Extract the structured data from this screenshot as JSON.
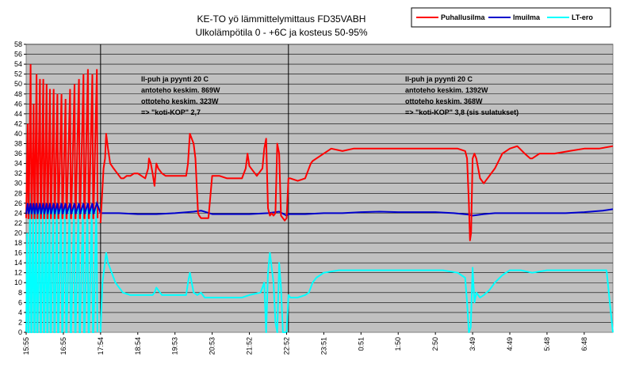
{
  "chart_data": {
    "type": "line",
    "title": "KE-TO yö lämmittelymittaus FD35VABH",
    "subtitle": "Ulkolämpötila 0 - +6C ja kosteus 50-95%",
    "ylim": [
      0,
      58
    ],
    "y_ticks": [
      0,
      2,
      4,
      6,
      8,
      10,
      12,
      14,
      16,
      18,
      20,
      22,
      24,
      26,
      28,
      30,
      32,
      34,
      36,
      38,
      40,
      42,
      44,
      46,
      48,
      50,
      52,
      54,
      56,
      58
    ],
    "x_ticks": [
      "15:55",
      "16:55",
      "17:54",
      "18:54",
      "19:53",
      "20:53",
      "21:52",
      "22:52",
      "23:51",
      "0:51",
      "1:50",
      "2:50",
      "3:49",
      "4:49",
      "5:48",
      "6:48"
    ],
    "x_range": [
      0,
      15.77
    ],
    "grid": true,
    "background": "#c0c0c0",
    "legend_position": "top-right",
    "dividers": [
      2.0,
      7.05
    ],
    "annotations": [
      {
        "lines": [
          "Il-puh ja pyynti 20 C",
          "antoteho keskim. 869W",
          "ottoteho keskim. 323W",
          "=> \"koti-KOP\" 2,7"
        ]
      },
      {
        "lines": [
          "Il-puh ja pyynti 20 C",
          "antoteho keskim. 1392W",
          "ottoteho keskim. 368W",
          "=> \"koti-KOP\" 3,8 (sis sulatukset)"
        ]
      }
    ],
    "series": [
      {
        "name": "Puhallusilma",
        "color": "#ff0000",
        "x": [
          2.0,
          2.08,
          2.12,
          2.15,
          2.2,
          2.26,
          2.35,
          2.45,
          2.55,
          2.62,
          2.7,
          2.8,
          2.9,
          3.0,
          3.1,
          3.2,
          3.28,
          3.3,
          3.35,
          3.4,
          3.45,
          3.5,
          3.55,
          3.65,
          3.75,
          3.85,
          4.0,
          4.2,
          4.3,
          4.35,
          4.4,
          4.5,
          4.55,
          4.62,
          4.65,
          4.7,
          4.8,
          4.9,
          5.0,
          5.2,
          5.4,
          5.6,
          5.8,
          5.9,
          5.95,
          6.0,
          6.2,
          6.35,
          6.4,
          6.45,
          6.5,
          6.55,
          6.6,
          6.65,
          6.7,
          6.75,
          6.8,
          6.85,
          6.9,
          6.95,
          7.0,
          7.05,
          7.1,
          7.3,
          7.5,
          7.6,
          7.65,
          7.7,
          7.8,
          8.0,
          8.2,
          8.5,
          8.8,
          9.0,
          9.3,
          9.6,
          10.0,
          10.4,
          10.8,
          11.2,
          11.6,
          11.8,
          11.85,
          11.9,
          11.93,
          11.96,
          12.0,
          12.05,
          12.1,
          12.2,
          12.3,
          12.45,
          12.6,
          12.8,
          13.0,
          13.2,
          13.4,
          13.55,
          13.6,
          13.8,
          14.2,
          14.6,
          15.0,
          15.4,
          15.77
        ],
        "values": [
          22,
          33,
          35,
          40,
          37,
          34,
          33,
          32,
          31,
          31,
          31.5,
          31.5,
          32,
          32,
          31.5,
          31,
          33,
          35,
          34,
          32,
          29.5,
          34,
          33,
          32,
          31.5,
          31.5,
          31.5,
          31.5,
          31.5,
          34,
          40,
          38,
          35,
          24,
          23.5,
          23,
          23,
          23,
          31.5,
          31.5,
          31,
          31,
          31,
          33,
          36,
          33.5,
          31.5,
          33,
          37,
          39,
          25,
          23.5,
          24,
          23.5,
          24,
          38,
          36,
          23.5,
          23,
          22.5,
          23,
          31,
          31,
          30.5,
          31,
          33,
          34,
          34.5,
          35,
          36,
          37,
          36.5,
          37,
          37,
          37,
          37,
          37,
          37,
          37,
          37,
          37,
          36.5,
          35,
          26,
          18.5,
          20,
          35,
          36,
          35,
          31,
          30,
          31.5,
          33,
          36,
          37,
          37.5,
          36,
          35,
          35,
          36,
          36,
          36.5,
          37,
          37,
          37.5
        ]
      },
      {
        "name": "Imuilma",
        "color": "#0000cc",
        "x": [
          2.0,
          2.5,
          3.0,
          3.5,
          4.0,
          4.5,
          4.7,
          5.0,
          5.5,
          6.0,
          6.5,
          6.8,
          7.0,
          7.05,
          7.5,
          8.0,
          8.5,
          9.0,
          9.5,
          10.0,
          10.5,
          11.0,
          11.5,
          11.9,
          12.0,
          12.3,
          12.6,
          13.0,
          13.5,
          14.0,
          14.5,
          15.0,
          15.5,
          15.77
        ],
        "values": [
          24,
          24,
          23.8,
          23.8,
          24,
          24.3,
          24.5,
          23.8,
          23.8,
          23.8,
          24,
          24.3,
          23.5,
          23.8,
          23.8,
          24,
          24,
          24.2,
          24.3,
          24.2,
          24.2,
          24.2,
          24,
          23.7,
          23.5,
          23.8,
          24,
          24,
          24,
          24,
          24,
          24.2,
          24.5,
          24.8
        ]
      },
      {
        "name": "LT-ero",
        "color": "#00ffff",
        "x": [
          2.0,
          2.05,
          2.15,
          2.2,
          2.3,
          2.4,
          2.6,
          2.8,
          3.0,
          3.2,
          3.4,
          3.45,
          3.5,
          3.55,
          3.6,
          3.65,
          3.75,
          3.9,
          4.1,
          4.3,
          4.35,
          4.4,
          4.45,
          4.5,
          4.6,
          4.7,
          4.8,
          5.0,
          5.4,
          5.8,
          6.0,
          6.3,
          6.4,
          6.45,
          6.5,
          6.55,
          6.65,
          6.7,
          6.75,
          6.8,
          6.85,
          6.9,
          7.0,
          7.05,
          7.1,
          7.3,
          7.5,
          7.6,
          7.7,
          7.8,
          8.0,
          8.4,
          8.8,
          9.2,
          9.6,
          10.0,
          10.4,
          10.8,
          11.2,
          11.6,
          11.8,
          11.85,
          11.9,
          11.95,
          12.0,
          12.05,
          12.1,
          12.2,
          12.3,
          12.45,
          12.6,
          12.8,
          13.0,
          13.3,
          13.6,
          14.0,
          14.4,
          14.8,
          15.2,
          15.6,
          15.77
        ],
        "values": [
          0,
          10,
          16,
          14,
          12,
          10,
          8,
          7.5,
          7.5,
          7.5,
          7.5,
          8,
          9,
          8.5,
          8,
          7.5,
          7.5,
          7.5,
          7.5,
          7.5,
          10,
          12,
          10,
          8,
          7.5,
          8,
          7,
          7,
          7,
          7,
          7.5,
          8,
          10,
          0,
          12,
          16,
          10,
          2,
          0,
          14,
          9,
          0,
          0,
          7.5,
          7,
          7,
          7.5,
          8,
          10,
          11,
          12,
          12.5,
          12.5,
          12.5,
          12.5,
          12.5,
          12.5,
          12.5,
          12.5,
          12,
          11,
          6,
          0,
          1,
          13,
          6,
          8,
          7,
          7.5,
          8.5,
          10,
          11.5,
          12.5,
          12.5,
          12,
          12.5,
          12.5,
          12.5,
          12.5,
          12.5,
          0
        ]
      }
    ],
    "transient_segment": {
      "x_span": [
        0,
        2.0
      ],
      "spikes": [
        {
          "x": 0.04,
          "red": 42,
          "cyan": 20
        },
        {
          "x": 0.12,
          "red": 54,
          "cyan": 28
        },
        {
          "x": 0.2,
          "red": 46,
          "cyan": 26
        },
        {
          "x": 0.28,
          "red": 52,
          "cyan": 26
        },
        {
          "x": 0.37,
          "red": 51,
          "cyan": 25
        },
        {
          "x": 0.46,
          "red": 51,
          "cyan": 25
        },
        {
          "x": 0.55,
          "red": 50,
          "cyan": 25
        },
        {
          "x": 0.64,
          "red": 49,
          "cyan": 25
        },
        {
          "x": 0.74,
          "red": 49,
          "cyan": 25
        },
        {
          "x": 0.84,
          "red": 48,
          "cyan": 25
        },
        {
          "x": 0.95,
          "red": 48,
          "cyan": 25
        },
        {
          "x": 1.06,
          "red": 47,
          "cyan": 25
        },
        {
          "x": 1.18,
          "red": 49,
          "cyan": 25
        },
        {
          "x": 1.3,
          "red": 50,
          "cyan": 25
        },
        {
          "x": 1.42,
          "red": 51,
          "cyan": 25
        },
        {
          "x": 1.54,
          "red": 52,
          "cyan": 25
        },
        {
          "x": 1.66,
          "red": 53,
          "cyan": 25
        },
        {
          "x": 1.78,
          "red": 52,
          "cyan": 25
        },
        {
          "x": 1.9,
          "red": 53,
          "cyan": 25
        }
      ],
      "red_base": 23,
      "cyan_base": 0,
      "blue_level": 25
    }
  }
}
